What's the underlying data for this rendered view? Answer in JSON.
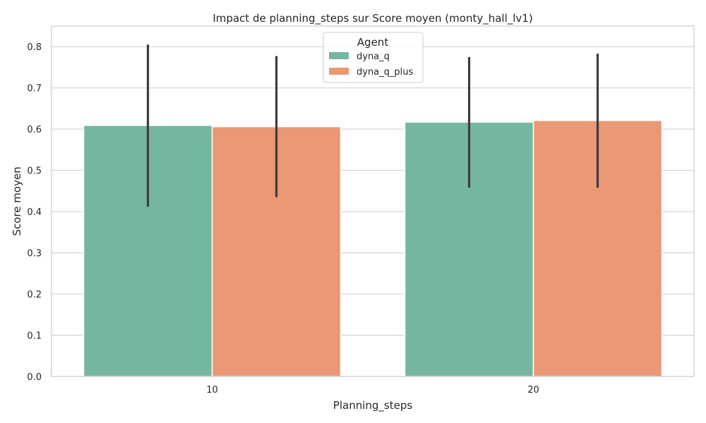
{
  "chart_data": {
    "type": "bar",
    "title": "Impact de planning_steps sur Score moyen (monty_hall_lv1)",
    "xlabel": "Planning_steps",
    "ylabel": "Score moyen",
    "categories": [
      "10",
      "20"
    ],
    "ylim": [
      0,
      0.85
    ],
    "yticks": [
      0.0,
      0.1,
      0.2,
      0.3,
      0.4,
      0.5,
      0.6,
      0.7,
      0.8
    ],
    "ytick_labels": [
      "0.0",
      "0.1",
      "0.2",
      "0.3",
      "0.4",
      "0.5",
      "0.6",
      "0.7",
      "0.8"
    ],
    "grid": "horizontal",
    "legend": {
      "title": "Agent",
      "placement": "top-center"
    },
    "series": [
      {
        "name": "dyna_q",
        "color": "#75b6a1",
        "values": [
          0.609,
          0.617
        ],
        "err_low": [
          0.412,
          0.458
        ],
        "err_high": [
          0.805,
          0.775
        ]
      },
      {
        "name": "dyna_q_plus",
        "color": "#ea9875",
        "values": [
          0.606,
          0.621
        ],
        "err_low": [
          0.435,
          0.458
        ],
        "err_high": [
          0.777,
          0.783
        ]
      }
    ]
  }
}
